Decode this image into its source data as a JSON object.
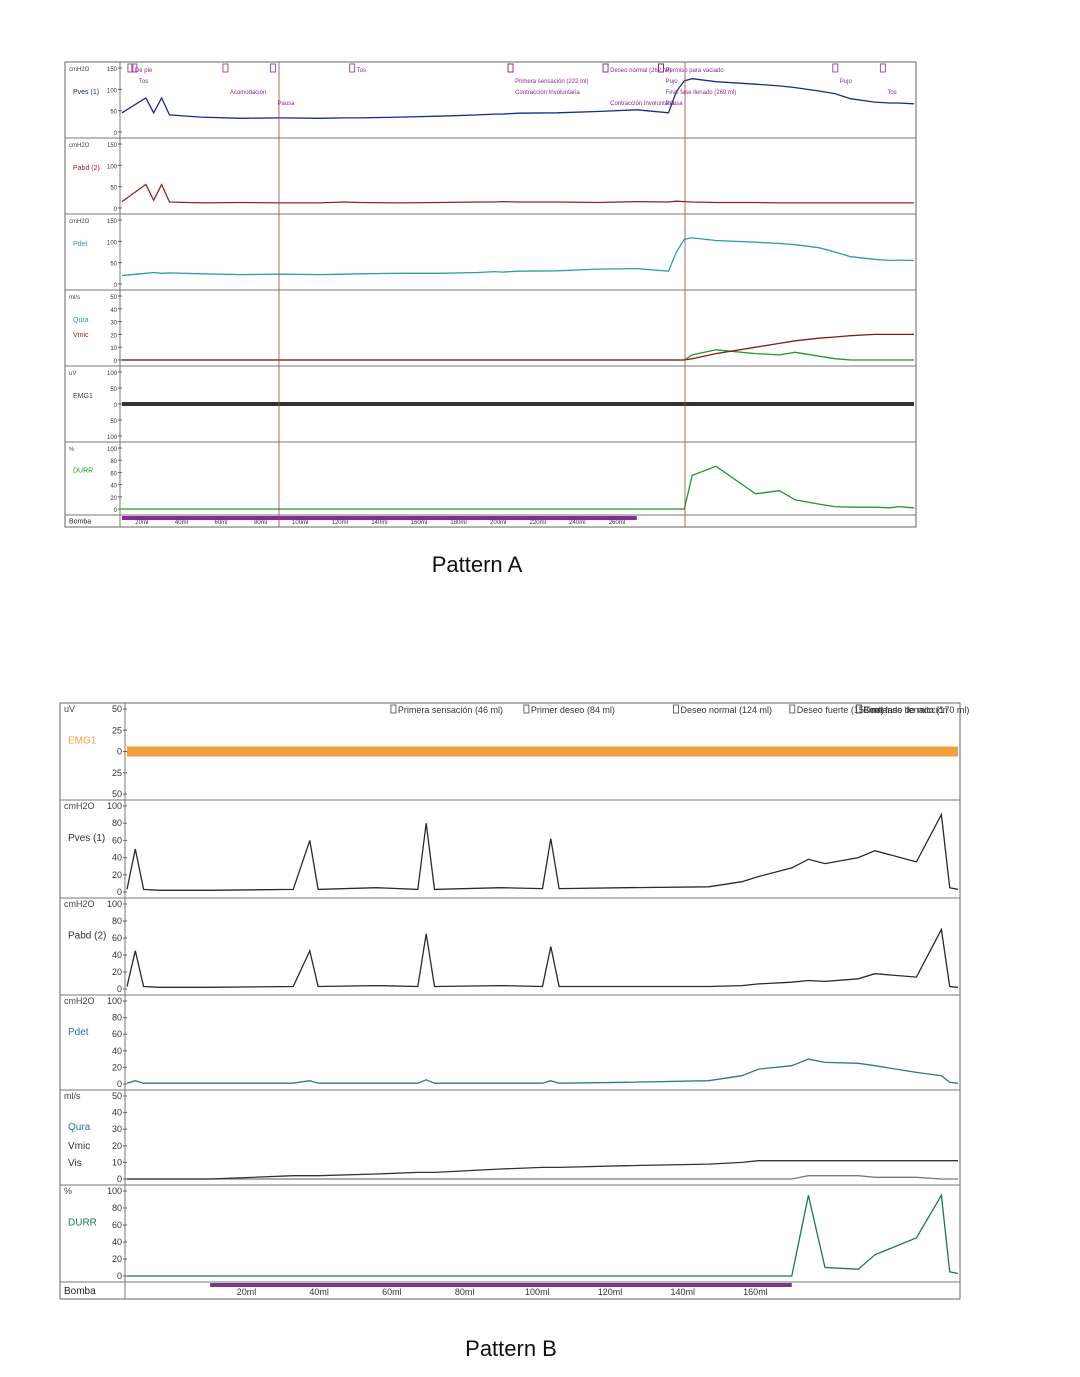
{
  "captions": {
    "a": "Pattern A",
    "b": "Pattern B"
  },
  "colors": {
    "pves_a": "#1a2a8a",
    "pabd_a": "#9c2020",
    "pdet_a": "#2aa0a0",
    "qura_a": "#1f9a2a",
    "vmic_a": "#8a1a1a",
    "emg_a": "#333333",
    "durr_a": "#1f9a2a",
    "pump_a": "#8a2a9a",
    "void_marker": "#b04040",
    "trace_b": "#2a2a2a",
    "emg_b": "#f0a040",
    "pdet_b": "#2a7a8a",
    "durr_b": "#1a7a50",
    "pump_b": "#7a3a8a",
    "event_label": "#8a2a8a"
  },
  "chart_data": [
    {
      "id": "pattern-a",
      "type": "line",
      "title": "Pattern A",
      "channels": [
        {
          "key": "pves",
          "label": "Pves (1)",
          "unit": "cmH2O",
          "ticks": [
            "150",
            "100",
            "50",
            "0"
          ],
          "ylim": [
            0,
            150
          ]
        },
        {
          "key": "pabd",
          "label": "Pabd (2)",
          "unit": "cmH2O",
          "ticks": [
            "150",
            "100",
            "50",
            "0"
          ],
          "ylim": [
            0,
            150
          ]
        },
        {
          "key": "pdet",
          "label": "Pdet",
          "unit": "cmH2O",
          "ticks": [
            "150",
            "100",
            "50",
            "0"
          ],
          "ylim": [
            0,
            150
          ]
        },
        {
          "key": "qura",
          "label": "Qura",
          "label2": "Vmic",
          "unit": "ml/s",
          "ticks": [
            "50",
            "40",
            "30",
            "20",
            "10",
            "0"
          ],
          "ylim": [
            0,
            50
          ]
        },
        {
          "key": "emg",
          "label": "EMG1",
          "unit": "uV",
          "ticks": [
            "100",
            "50",
            "0",
            "50",
            "100"
          ],
          "ylim": [
            -100,
            100
          ]
        },
        {
          "key": "durr",
          "label": "DURR",
          "unit": "%",
          "ticks": [
            "100",
            "80",
            "60",
            "40",
            "20",
            "0"
          ],
          "ylim": [
            0,
            100
          ]
        }
      ],
      "pump_label": "Bomba",
      "pump_ticks": [
        "20ml",
        "40ml",
        "60ml",
        "80ml",
        "100ml",
        "120ml",
        "140ml",
        "160ml",
        "180ml",
        "200ml",
        "220ml",
        "240ml",
        "260ml"
      ],
      "x": [
        0,
        0.03,
        0.04,
        0.05,
        0.06,
        0.1,
        0.15,
        0.2,
        0.25,
        0.28,
        0.3,
        0.35,
        0.4,
        0.45,
        0.47,
        0.48,
        0.5,
        0.55,
        0.6,
        0.65,
        0.69,
        0.7,
        0.71,
        0.72,
        0.75,
        0.8,
        0.83,
        0.85,
        0.88,
        0.9,
        0.92,
        0.95,
        0.97,
        0.98,
        1.0
      ],
      "series": [
        {
          "name": "Pves (1)",
          "values": [
            45,
            80,
            45,
            80,
            40,
            35,
            32,
            33,
            32,
            33,
            33,
            35,
            37,
            40,
            42,
            42,
            44,
            45,
            48,
            52,
            45,
            95,
            120,
            125,
            118,
            112,
            108,
            104,
            96,
            90,
            78,
            70,
            68,
            68,
            66
          ]
        },
        {
          "name": "Pabd (2)",
          "values": [
            15,
            55,
            18,
            55,
            14,
            12,
            13,
            12,
            12,
            14,
            13,
            12,
            13,
            14,
            14,
            15,
            14,
            14,
            13,
            15,
            14,
            16,
            15,
            14,
            13,
            13,
            12,
            12,
            12,
            12,
            12,
            12,
            12,
            12,
            12
          ]
        },
        {
          "name": "Pdet",
          "values": [
            20,
            25,
            27,
            25,
            26,
            24,
            22,
            23,
            22,
            23,
            24,
            25,
            25,
            27,
            29,
            28,
            30,
            31,
            35,
            36,
            30,
            75,
            105,
            108,
            102,
            98,
            95,
            92,
            85,
            75,
            64,
            58,
            55,
            56,
            55
          ]
        },
        {
          "name": "Qura",
          "values": [
            0,
            0,
            0,
            0,
            0,
            0,
            0,
            0,
            0,
            0,
            0,
            0,
            0,
            0,
            0,
            0,
            0,
            0,
            0,
            0,
            0,
            0,
            0,
            4,
            8,
            5,
            4,
            6,
            3,
            1,
            0,
            0,
            0,
            0,
            0
          ]
        },
        {
          "name": "Vmic",
          "values": [
            0,
            0,
            0,
            0,
            0,
            0,
            0,
            0,
            0,
            0,
            0,
            0,
            0,
            0,
            0,
            0,
            0,
            0,
            0,
            0,
            0,
            0,
            0,
            1,
            5,
            10,
            13,
            15,
            17,
            18,
            19,
            20,
            20,
            20,
            20
          ]
        },
        {
          "name": "DURR",
          "values": [
            0,
            0,
            0,
            0,
            0,
            0,
            0,
            0,
            0,
            0,
            0,
            0,
            0,
            0,
            0,
            0,
            0,
            0,
            0,
            0,
            0,
            0,
            0,
            55,
            70,
            25,
            30,
            15,
            8,
            4,
            3,
            3,
            2,
            4,
            2
          ]
        }
      ],
      "events": [
        {
          "x": 0.01,
          "text": "De pie"
        },
        {
          "x": 0.015,
          "text": "Tos"
        },
        {
          "x": 0.13,
          "text": "Acomodación"
        },
        {
          "x": 0.19,
          "text": "Pausa"
        },
        {
          "x": 0.29,
          "text": "Tos"
        },
        {
          "x": 0.49,
          "text": "Primera sensación (222 ml)"
        },
        {
          "x": 0.49,
          "text": "Contracción Involuntaria"
        },
        {
          "x": 0.61,
          "text": "Contracción Involuntaria"
        },
        {
          "x": 0.61,
          "text": "Deseo normal (262 ml)"
        },
        {
          "x": 0.68,
          "text": "Pujo"
        },
        {
          "x": 0.68,
          "text": "Final fase llenado (269 ml)"
        },
        {
          "x": 0.68,
          "text": "Pausa"
        },
        {
          "x": 0.68,
          "text": "Permiso para vaciado"
        },
        {
          "x": 0.9,
          "text": "Pujo"
        },
        {
          "x": 0.96,
          "text": "Tos"
        }
      ]
    },
    {
      "id": "pattern-b",
      "type": "line",
      "title": "Pattern B",
      "channels": [
        {
          "key": "emg",
          "label": "EMG1",
          "unit": "uV",
          "ticks": [
            "50",
            "25",
            "0",
            "25",
            "50"
          ],
          "ylim": [
            -50,
            50
          ]
        },
        {
          "key": "pves",
          "label": "Pves (1)",
          "unit": "cmH2O",
          "ticks": [
            "100",
            "80",
            "60",
            "40",
            "20",
            "0"
          ],
          "ylim": [
            0,
            100
          ]
        },
        {
          "key": "pabd",
          "label": "Pabd (2)",
          "unit": "cmH2O",
          "ticks": [
            "100",
            "80",
            "60",
            "40",
            "20",
            "0"
          ],
          "ylim": [
            0,
            100
          ]
        },
        {
          "key": "pdet",
          "label": "Pdet",
          "unit": "cmH2O",
          "ticks": [
            "100",
            "80",
            "60",
            "40",
            "20",
            "0"
          ],
          "ylim": [
            0,
            100
          ]
        },
        {
          "key": "qura",
          "label": "Qura",
          "label2": "Vmic",
          "label3": "Vis",
          "unit": "ml/s",
          "ticks": [
            "50",
            "40",
            "30",
            "20",
            "10",
            "0"
          ],
          "ylim": [
            0,
            50
          ]
        },
        {
          "key": "durr",
          "label": "DURR",
          "unit": "%",
          "ticks": [
            "100",
            "80",
            "60",
            "40",
            "20",
            "0"
          ],
          "ylim": [
            0,
            100
          ]
        }
      ],
      "pump_label": "Bomba",
      "pump_ticks": [
        "20ml",
        "40ml",
        "60ml",
        "80ml",
        "100ml",
        "120ml",
        "140ml",
        "160ml"
      ],
      "x": [
        0,
        0.01,
        0.02,
        0.04,
        0.1,
        0.2,
        0.22,
        0.23,
        0.3,
        0.35,
        0.36,
        0.37,
        0.45,
        0.5,
        0.51,
        0.52,
        0.6,
        0.7,
        0.74,
        0.76,
        0.8,
        0.82,
        0.84,
        0.88,
        0.9,
        0.95,
        0.98,
        0.99,
        1.0
      ],
      "series": [
        {
          "name": "Pves (1)",
          "values": [
            3,
            50,
            3,
            2,
            2,
            3,
            60,
            3,
            5,
            3,
            80,
            3,
            5,
            4,
            62,
            4,
            5,
            6,
            12,
            18,
            28,
            38,
            33,
            40,
            48,
            35,
            90,
            5,
            3
          ]
        },
        {
          "name": "Pabd (2)",
          "values": [
            3,
            45,
            3,
            2,
            2,
            3,
            45,
            3,
            4,
            3,
            65,
            3,
            4,
            3,
            50,
            3,
            3,
            3,
            4,
            6,
            8,
            10,
            9,
            12,
            18,
            14,
            70,
            3,
            2
          ]
        },
        {
          "name": "Pdet",
          "values": [
            1,
            4,
            1,
            1,
            1,
            1,
            4,
            1,
            1,
            1,
            5,
            1,
            1,
            1,
            4,
            1,
            2,
            4,
            10,
            18,
            22,
            30,
            26,
            25,
            22,
            14,
            10,
            2,
            1
          ]
        },
        {
          "name": "Vmic",
          "values": [
            0,
            0,
            0,
            0,
            0,
            2,
            2,
            2,
            3,
            4,
            4,
            4,
            6,
            7,
            7,
            7,
            8,
            9,
            10,
            11,
            11,
            11,
            11,
            11,
            11,
            11,
            11,
            11,
            11
          ]
        },
        {
          "name": "Qura",
          "values": [
            0,
            0,
            0,
            0,
            0,
            0,
            0,
            0,
            0,
            0,
            0,
            0,
            0,
            0,
            0,
            0,
            0,
            0,
            0,
            0,
            0,
            2,
            2,
            2,
            1,
            1,
            0,
            0,
            0
          ]
        },
        {
          "name": "DURR",
          "values": [
            0,
            0,
            0,
            0,
            0,
            0,
            0,
            0,
            0,
            0,
            0,
            0,
            0,
            0,
            0,
            0,
            0,
            0,
            0,
            0,
            0,
            95,
            10,
            8,
            25,
            45,
            95,
            5,
            3
          ]
        }
      ],
      "events": [
        {
          "x": 0.32,
          "text": "Primera sensación (46 ml)"
        },
        {
          "x": 0.48,
          "text": "Primer deseo (84 ml)"
        },
        {
          "x": 0.66,
          "text": "Deseo normal (124 ml)"
        },
        {
          "x": 0.8,
          "text": "Deseo fuerte (158 ml)"
        },
        {
          "x": 0.88,
          "text": "Final fase llenado (170 ml)"
        },
        {
          "x": 0.88,
          "text": "Comando de micción"
        }
      ]
    }
  ]
}
